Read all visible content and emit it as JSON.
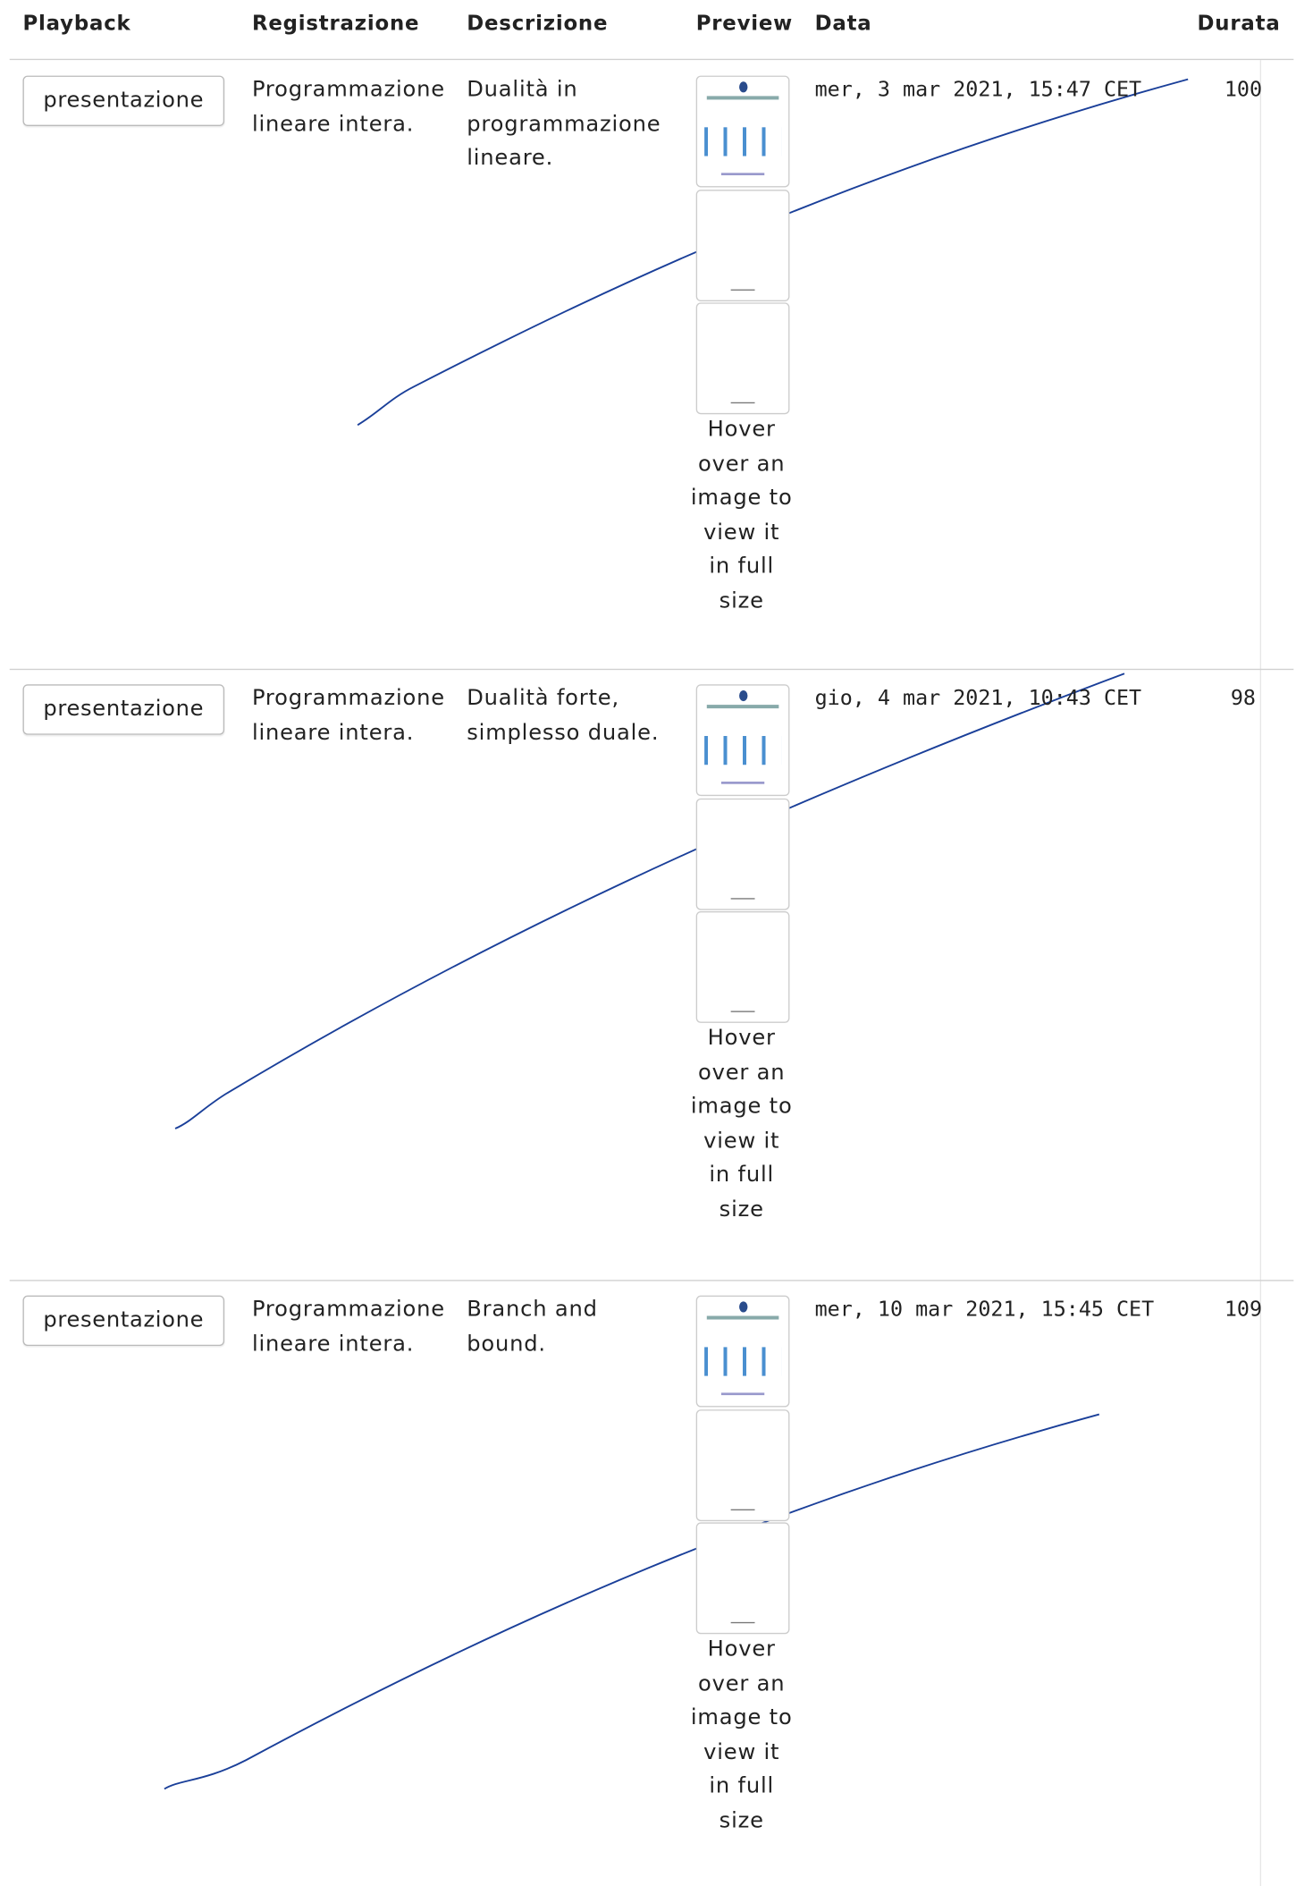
{
  "header": {
    "columns": [
      "Playback",
      "Registrazione",
      "Descrizione",
      "Preview",
      "Data",
      "Durata"
    ]
  },
  "rows": [
    {
      "playback": "presentazione",
      "registrazione": "Programmazione lineare intera.",
      "descrizione": "Dualità in programmazione lineare.",
      "preview": "Hover over an image to view it in full size",
      "data": "mer, 3 mar 2021, 15:47 CET",
      "durata": 100
    },
    {
      "playback": "presentazione",
      "registrazione": "Programmazione lineare intera.",
      "descrizione": "Dualità forte, simplesso duale.",
      "preview": "Hover over an image to view it in full size",
      "data": "gio, 4 mar 2021, 10:43 CET",
      "durata": 98
    },
    {
      "playback": "presentazione",
      "registrazione": "Programmazione lineare intera.",
      "descrizione": "Branch and bound.",
      "preview": "Hover over an image to view it in full size",
      "data": "mer, 10 mar 2021, 15:45 CET",
      "durata": 109
    }
  ]
}
